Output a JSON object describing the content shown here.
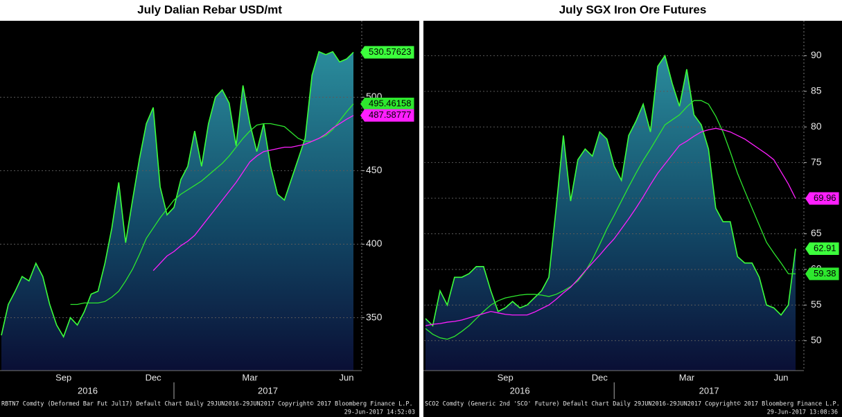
{
  "chart_data": [
    {
      "type": "line",
      "title": "July Dalian Rebar USD/mt",
      "categories": [
        null,
        null,
        null,
        null,
        null,
        null,
        null,
        null,
        null,
        "Sep",
        null,
        null,
        null,
        null,
        null,
        null,
        null,
        null,
        null,
        null,
        null,
        null,
        "Dec",
        null,
        null,
        null,
        null,
        null,
        null,
        null,
        null,
        null,
        null,
        null,
        null,
        null,
        "Mar",
        null,
        null,
        null,
        null,
        null,
        null,
        null,
        null,
        null,
        null,
        null,
        null,
        null,
        "Jun",
        null
      ],
      "years": [
        "2016",
        "2017"
      ],
      "series": [
        {
          "color": "#3cff3c",
          "area": true,
          "values": [
            338,
            359,
            368,
            378,
            375,
            387,
            378,
            359,
            345,
            337,
            350,
            345,
            354,
            366,
            368,
            387,
            411,
            442,
            401,
            430,
            458,
            482,
            493,
            439,
            420,
            425,
            444,
            453,
            477,
            453,
            482,
            500,
            505,
            496,
            467,
            508,
            482,
            463,
            482,
            453,
            434,
            430,
            444,
            458,
            472,
            515,
            531,
            529,
            531,
            524,
            526,
            530.57623
          ]
        },
        {
          "color": "#2ee82e",
          "values": [
            null,
            null,
            null,
            null,
            null,
            null,
            null,
            null,
            null,
            null,
            359,
            359,
            360,
            360,
            360,
            361,
            364,
            368,
            375,
            383,
            393,
            404,
            411,
            418,
            424,
            430,
            434,
            437,
            440,
            443,
            447,
            451,
            455,
            460,
            466,
            472,
            477,
            481,
            482,
            482,
            481,
            480,
            476,
            472,
            470,
            470,
            472,
            474,
            478,
            484,
            490,
            495.46158
          ]
        },
        {
          "color": "#ff1fff",
          "values": [
            null,
            null,
            null,
            null,
            null,
            null,
            null,
            null,
            null,
            null,
            null,
            null,
            null,
            null,
            null,
            null,
            null,
            null,
            null,
            null,
            null,
            null,
            382,
            387,
            392,
            395,
            399,
            402,
            406,
            412,
            418,
            424,
            430,
            436,
            442,
            449,
            456,
            460,
            463,
            464,
            465,
            466,
            466,
            467,
            468,
            470,
            472,
            475,
            479,
            482,
            485,
            487.58777
          ]
        }
      ],
      "ylim": [
        314,
        552
      ],
      "yticks": [
        350,
        400,
        450,
        500
      ],
      "grid": true,
      "footer": "RBTN7 Comdty (Deformed Bar Fut Jul17) Default Chart Daily 29JUN2016-29JUN2017 Copyright© 2017 Bloomberg Finance L.P.",
      "timestamp": "29-Jun-2017 14:52:03"
    },
    {
      "type": "line",
      "title": "July SGX Iron Ore Futures",
      "categories": [
        null,
        null,
        null,
        null,
        null,
        null,
        null,
        null,
        null,
        null,
        null,
        "Sep",
        null,
        null,
        null,
        null,
        null,
        null,
        null,
        null,
        null,
        null,
        null,
        null,
        "Dec",
        null,
        null,
        null,
        null,
        null,
        null,
        null,
        null,
        null,
        null,
        null,
        "Mar",
        null,
        null,
        null,
        null,
        null,
        null,
        null,
        null,
        null,
        null,
        null,
        null,
        "Jun",
        null,
        null
      ],
      "years": [
        "2016",
        "2017"
      ],
      "series": [
        {
          "color": "#3cff3c",
          "area": true,
          "values": [
            53.1,
            52.1,
            57.0,
            55.0,
            58.9,
            58.9,
            59.4,
            60.4,
            60.4,
            57.0,
            54.1,
            54.6,
            55.5,
            54.6,
            55.0,
            56.0,
            57.0,
            58.9,
            68.6,
            78.8,
            69.6,
            75.4,
            76.9,
            75.9,
            79.3,
            78.3,
            74.5,
            72.5,
            78.8,
            80.8,
            83.2,
            79.3,
            88.5,
            90.0,
            86.1,
            82.9,
            88.1,
            81.7,
            80.3,
            76.9,
            68.6,
            66.7,
            66.7,
            61.8,
            60.9,
            60.9,
            58.9,
            55.0,
            54.6,
            53.6,
            55.0,
            62.91
          ]
        },
        {
          "color": "#2ee82e",
          "values": [
            51.7,
            50.9,
            50.4,
            50.2,
            50.6,
            51.3,
            52.1,
            53.1,
            54.1,
            55.0,
            55.6,
            56.0,
            56.2,
            56.4,
            56.5,
            56.5,
            56.4,
            56.2,
            56.5,
            57.0,
            57.6,
            58.4,
            59.7,
            61.4,
            63.5,
            65.7,
            67.6,
            69.6,
            71.6,
            73.5,
            75.3,
            76.9,
            78.6,
            80.3,
            81.0,
            81.7,
            82.8,
            83.7,
            83.7,
            83.2,
            81.5,
            79.3,
            76.5,
            73.5,
            71.0,
            68.6,
            66.2,
            63.8,
            62.3,
            60.9,
            59.4,
            59.38
          ]
        },
        {
          "color": "#ff1fff",
          "values": [
            52.1,
            52.3,
            52.4,
            52.6,
            52.7,
            52.9,
            53.2,
            53.5,
            53.8,
            54.1,
            53.9,
            53.7,
            53.6,
            53.6,
            53.6,
            54.0,
            54.5,
            55.0,
            55.8,
            56.7,
            57.5,
            58.6,
            59.8,
            60.9,
            62.0,
            63.2,
            64.3,
            65.7,
            67.1,
            68.6,
            70.2,
            71.9,
            73.5,
            74.8,
            76.1,
            77.4,
            78.0,
            78.7,
            79.3,
            79.6,
            79.8,
            79.6,
            79.3,
            78.8,
            78.3,
            77.6,
            76.9,
            76.2,
            75.4,
            73.7,
            72.0,
            69.96
          ]
        }
      ],
      "ylim": [
        45.8,
        94.9
      ],
      "yticks": [
        50,
        55,
        60,
        65,
        70,
        75,
        80,
        85,
        90
      ],
      "grid": true,
      "footer": "SCO2 Comdty (Generic 2nd 'SCO' Future) Default Chart Daily 29JUN2016-29JUN2017 Copyright© 2017 Bloomberg Finance L.P.",
      "timestamp": "29-Jun-2017 13:08:36"
    }
  ]
}
